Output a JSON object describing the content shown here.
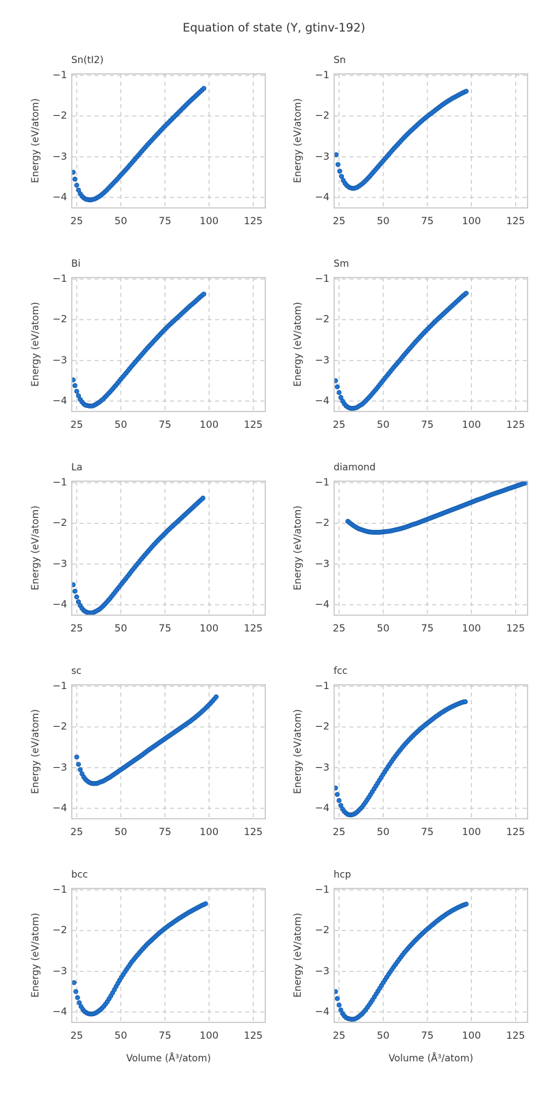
{
  "page_title": "Equation of state (Y, gtinv-192)",
  "axes": {
    "xlabel": "Volume (Å³/atom)",
    "ylabel": "Energy (eV/atom)",
    "xticks": [
      25,
      50,
      75,
      100,
      125
    ],
    "yticks": [
      -1,
      -2,
      -3,
      -4
    ],
    "xlim": [
      21.9,
      132.1
    ],
    "ylim": [
      -4.27,
      -0.95
    ],
    "grid": "dashed"
  },
  "colors": {
    "dot_fill": "#2277d4",
    "dot_edge": "#1459a9",
    "grid": "#cccccc",
    "spine": "#c4c4c4",
    "text": "#3a3a3a",
    "title": "#333333",
    "background": "#ffffff"
  },
  "chart_data": [
    {
      "type": "scatter",
      "title": "Sn(tI2)",
      "xlabel": "Volume (Å³/atom)",
      "ylabel": "Energy (eV/atom)",
      "points": {
        "volume": [
          23,
          24,
          25,
          26,
          27,
          28,
          29,
          30,
          31,
          32,
          33,
          34,
          35,
          36,
          38,
          40,
          42,
          44,
          46,
          48,
          50,
          53,
          56,
          59,
          62,
          65,
          68,
          71,
          74,
          77,
          80,
          83,
          86,
          89,
          92,
          95,
          97
        ],
        "energy": [
          -3.38,
          -3.55,
          -3.7,
          -3.82,
          -3.91,
          -3.97,
          -4.01,
          -4.04,
          -4.05,
          -4.06,
          -4.06,
          -4.05,
          -4.04,
          -4.02,
          -3.97,
          -3.9,
          -3.82,
          -3.73,
          -3.64,
          -3.55,
          -3.45,
          -3.31,
          -3.16,
          -3.01,
          -2.86,
          -2.71,
          -2.57,
          -2.43,
          -2.29,
          -2.16,
          -2.03,
          -1.9,
          -1.77,
          -1.64,
          -1.52,
          -1.4,
          -1.32
        ]
      }
    },
    {
      "type": "scatter",
      "title": "Sn",
      "xlabel": "Volume (Å³/atom)",
      "ylabel": "Energy (eV/atom)",
      "points": {
        "volume": [
          23.4,
          24,
          25,
          26,
          27,
          28,
          29,
          30,
          31,
          32,
          33,
          34,
          35,
          36,
          38,
          40,
          42,
          44,
          46,
          48,
          50,
          53,
          56,
          59,
          62,
          65,
          68,
          71,
          74,
          77,
          80,
          83,
          86,
          89,
          92,
          95,
          97
        ],
        "energy": [
          -2.95,
          -3.12,
          -3.3,
          -3.44,
          -3.55,
          -3.63,
          -3.69,
          -3.73,
          -3.76,
          -3.77,
          -3.78,
          -3.77,
          -3.76,
          -3.73,
          -3.67,
          -3.59,
          -3.5,
          -3.4,
          -3.3,
          -3.2,
          -3.1,
          -2.95,
          -2.8,
          -2.66,
          -2.52,
          -2.39,
          -2.27,
          -2.15,
          -2.04,
          -1.94,
          -1.84,
          -1.74,
          -1.65,
          -1.57,
          -1.5,
          -1.43,
          -1.39
        ]
      }
    },
    {
      "type": "scatter",
      "title": "Bi",
      "xlabel": "Volume (Å³/atom)",
      "ylabel": "Energy (eV/atom)",
      "points": {
        "volume": [
          23,
          24,
          25,
          26,
          27,
          28,
          29,
          30,
          31,
          32,
          33,
          34,
          35,
          36,
          38,
          40,
          42,
          44,
          46,
          48,
          50,
          53,
          56,
          59,
          62,
          65,
          68,
          71,
          74,
          77,
          80,
          83,
          86,
          89,
          92,
          95,
          97
        ],
        "energy": [
          -3.48,
          -3.62,
          -3.76,
          -3.87,
          -3.96,
          -4.02,
          -4.07,
          -4.1,
          -4.11,
          -4.12,
          -4.12,
          -4.12,
          -4.1,
          -4.08,
          -4.02,
          -3.95,
          -3.86,
          -3.77,
          -3.67,
          -3.57,
          -3.46,
          -3.31,
          -3.15,
          -3.0,
          -2.85,
          -2.7,
          -2.56,
          -2.42,
          -2.28,
          -2.15,
          -2.03,
          -1.91,
          -1.79,
          -1.67,
          -1.56,
          -1.44,
          -1.37
        ]
      }
    },
    {
      "type": "scatter",
      "title": "Sm",
      "xlabel": "Volume (Å³/atom)",
      "ylabel": "Energy (eV/atom)",
      "points": {
        "volume": [
          23,
          24,
          25,
          26,
          27,
          28,
          29,
          30,
          31,
          32,
          33,
          34,
          35,
          36,
          38,
          40,
          42,
          44,
          46,
          48,
          50,
          53,
          56,
          59,
          62,
          65,
          68,
          71,
          74,
          77,
          80,
          83,
          86,
          89,
          92,
          95,
          97
        ],
        "energy": [
          -3.5,
          -3.65,
          -3.79,
          -3.91,
          -4.0,
          -4.07,
          -4.12,
          -4.15,
          -4.17,
          -4.18,
          -4.18,
          -4.17,
          -4.16,
          -4.13,
          -4.08,
          -4.0,
          -3.91,
          -3.81,
          -3.71,
          -3.6,
          -3.49,
          -3.33,
          -3.17,
          -3.02,
          -2.86,
          -2.71,
          -2.56,
          -2.42,
          -2.28,
          -2.15,
          -2.02,
          -1.9,
          -1.78,
          -1.66,
          -1.54,
          -1.42,
          -1.35
        ]
      }
    },
    {
      "type": "scatter",
      "title": "La",
      "xlabel": "Volume (Å³/atom)",
      "ylabel": "Energy (eV/atom)",
      "points": {
        "volume": [
          23,
          24,
          25,
          26,
          27,
          28,
          29,
          30,
          31,
          32,
          33,
          34,
          35,
          36,
          38,
          40,
          42,
          44,
          46,
          48,
          50,
          53,
          56,
          59,
          62,
          65,
          68,
          71,
          74,
          77,
          80,
          83,
          86,
          89,
          92,
          95,
          96.5
        ],
        "energy": [
          -3.51,
          -3.67,
          -3.81,
          -3.93,
          -4.02,
          -4.09,
          -4.14,
          -4.17,
          -4.19,
          -4.2,
          -4.2,
          -4.2,
          -4.18,
          -4.16,
          -4.11,
          -4.03,
          -3.94,
          -3.84,
          -3.73,
          -3.62,
          -3.51,
          -3.35,
          -3.18,
          -3.02,
          -2.86,
          -2.71,
          -2.56,
          -2.42,
          -2.29,
          -2.16,
          -2.04,
          -1.92,
          -1.8,
          -1.68,
          -1.56,
          -1.44,
          -1.38
        ]
      }
    },
    {
      "type": "scatter",
      "title": "diamond",
      "xlabel": "Volume (Å³/atom)",
      "ylabel": "Energy (eV/atom)",
      "points": {
        "volume": [
          30,
          32,
          34,
          36,
          38,
          40,
          42,
          44,
          46,
          48,
          50,
          52,
          54,
          56,
          58,
          60,
          63,
          66,
          69,
          72,
          75,
          78,
          81,
          84,
          87,
          90,
          93,
          96,
          99,
          103,
          107,
          111,
          115,
          119,
          123,
          127,
          131
        ],
        "energy": [
          -1.95,
          -2.02,
          -2.08,
          -2.13,
          -2.16,
          -2.19,
          -2.21,
          -2.22,
          -2.22,
          -2.22,
          -2.21,
          -2.2,
          -2.19,
          -2.17,
          -2.15,
          -2.13,
          -2.09,
          -2.04,
          -2.0,
          -1.95,
          -1.9,
          -1.85,
          -1.8,
          -1.75,
          -1.7,
          -1.65,
          -1.6,
          -1.55,
          -1.5,
          -1.43,
          -1.37,
          -1.3,
          -1.24,
          -1.18,
          -1.12,
          -1.06,
          -1.0
        ]
      }
    },
    {
      "type": "scatter",
      "title": "sc",
      "xlabel": "Volume (Å³/atom)",
      "ylabel": "Energy (eV/atom)",
      "points": {
        "volume": [
          25,
          26,
          27,
          28,
          29,
          30,
          31,
          32,
          33,
          34,
          35,
          36,
          37,
          38,
          40,
          42,
          44,
          46,
          48,
          50,
          53,
          56,
          59,
          62,
          65,
          68,
          71,
          74,
          77,
          80,
          83,
          86,
          89,
          92,
          95,
          98,
          101,
          104
        ],
        "energy": [
          -2.74,
          -2.92,
          -3.05,
          -3.15,
          -3.23,
          -3.29,
          -3.33,
          -3.36,
          -3.38,
          -3.39,
          -3.39,
          -3.39,
          -3.38,
          -3.36,
          -3.33,
          -3.28,
          -3.23,
          -3.17,
          -3.11,
          -3.05,
          -2.96,
          -2.87,
          -2.78,
          -2.69,
          -2.59,
          -2.5,
          -2.41,
          -2.32,
          -2.23,
          -2.14,
          -2.05,
          -1.96,
          -1.87,
          -1.77,
          -1.66,
          -1.54,
          -1.41,
          -1.26
        ]
      }
    },
    {
      "type": "scatter",
      "title": "fcc",
      "xlabel": "Volume (Å³/atom)",
      "ylabel": "Energy (eV/atom)",
      "points": {
        "volume": [
          23,
          24,
          25,
          26,
          27,
          28,
          29,
          30,
          31,
          32,
          33,
          34,
          35,
          36,
          38,
          40,
          42,
          44,
          46,
          48,
          50,
          53,
          56,
          59,
          62,
          65,
          68,
          71,
          74,
          77,
          80,
          83,
          86,
          89,
          92,
          95,
          96.5
        ],
        "energy": [
          -3.5,
          -3.66,
          -3.81,
          -3.93,
          -4.02,
          -4.08,
          -4.12,
          -4.15,
          -4.16,
          -4.16,
          -4.15,
          -4.13,
          -4.1,
          -4.06,
          -3.97,
          -3.85,
          -3.72,
          -3.58,
          -3.44,
          -3.3,
          -3.16,
          -2.96,
          -2.77,
          -2.6,
          -2.44,
          -2.3,
          -2.17,
          -2.05,
          -1.94,
          -1.84,
          -1.74,
          -1.65,
          -1.57,
          -1.5,
          -1.44,
          -1.39,
          -1.38
        ]
      }
    },
    {
      "type": "scatter",
      "title": "bcc",
      "xlabel": "Volume (Å³/atom)",
      "ylabel": "Energy (eV/atom)",
      "points": {
        "volume": [
          23.5,
          24,
          25,
          26,
          27,
          28,
          29,
          30,
          31,
          32,
          33,
          34,
          35,
          36,
          38,
          40,
          42,
          44,
          46,
          48,
          50,
          53,
          56,
          59,
          62,
          65,
          68,
          71,
          74,
          77,
          80,
          83,
          86,
          89,
          92,
          95,
          98
        ],
        "energy": [
          -3.28,
          -3.42,
          -3.58,
          -3.72,
          -3.83,
          -3.91,
          -3.97,
          -4.01,
          -4.03,
          -4.05,
          -4.05,
          -4.05,
          -4.04,
          -4.02,
          -3.96,
          -3.88,
          -3.77,
          -3.63,
          -3.48,
          -3.32,
          -3.17,
          -2.97,
          -2.78,
          -2.62,
          -2.47,
          -2.33,
          -2.21,
          -2.09,
          -1.98,
          -1.88,
          -1.79,
          -1.7,
          -1.62,
          -1.54,
          -1.47,
          -1.4,
          -1.34
        ]
      }
    },
    {
      "type": "scatter",
      "title": "hcp",
      "xlabel": "Volume (Å³/atom)",
      "ylabel": "Energy (eV/atom)",
      "points": {
        "volume": [
          23,
          24,
          25,
          26,
          27,
          28,
          29,
          30,
          31,
          32,
          33,
          34,
          35,
          36,
          38,
          40,
          42,
          44,
          46,
          48,
          50,
          53,
          56,
          59,
          62,
          65,
          68,
          71,
          74,
          77,
          80,
          83,
          86,
          89,
          92,
          95,
          97
        ],
        "energy": [
          -3.5,
          -3.67,
          -3.83,
          -3.95,
          -4.04,
          -4.1,
          -4.14,
          -4.16,
          -4.17,
          -4.18,
          -4.18,
          -4.17,
          -4.15,
          -4.12,
          -4.05,
          -3.95,
          -3.83,
          -3.7,
          -3.56,
          -3.42,
          -3.28,
          -3.08,
          -2.89,
          -2.71,
          -2.54,
          -2.39,
          -2.25,
          -2.12,
          -2.0,
          -1.89,
          -1.78,
          -1.68,
          -1.59,
          -1.51,
          -1.44,
          -1.38,
          -1.35
        ]
      }
    }
  ]
}
